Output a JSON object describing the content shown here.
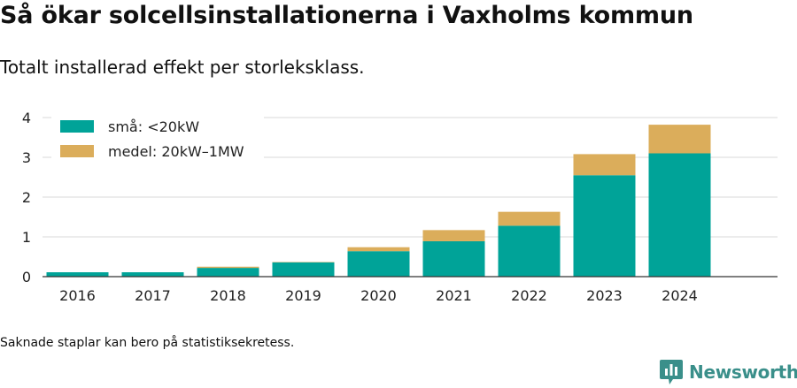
{
  "header": {
    "title": "Så ökar solcellsinstallationerna i Vaxholms kommun",
    "subtitle": "Totalt installerad effekt per storleksklass."
  },
  "footnote": "Saknade staplar kan bero på statistiksekretess.",
  "brand": {
    "name": "Newsworthy",
    "color": "#3a8f8a"
  },
  "chart_data": {
    "type": "bar",
    "stacked": true,
    "categories": [
      "2016",
      "2017",
      "2018",
      "2019",
      "2020",
      "2021",
      "2022",
      "2023",
      "2024"
    ],
    "series": [
      {
        "name": "små: <20kW",
        "color": "#00a398",
        "values": [
          0.11,
          0.11,
          0.22,
          0.36,
          0.64,
          0.89,
          1.28,
          2.55,
          3.1
        ]
      },
      {
        "name": "medel: 20kW–1MW",
        "color": "#dbad5b",
        "values": [
          0,
          0,
          0.03,
          0.01,
          0.1,
          0.28,
          0.35,
          0.53,
          0.72
        ]
      }
    ],
    "ylim": [
      0,
      4
    ],
    "yticks": [
      0,
      1,
      2,
      3,
      4
    ],
    "xlabel": "",
    "ylabel": "",
    "grid": true,
    "legend_position": "top-left"
  }
}
